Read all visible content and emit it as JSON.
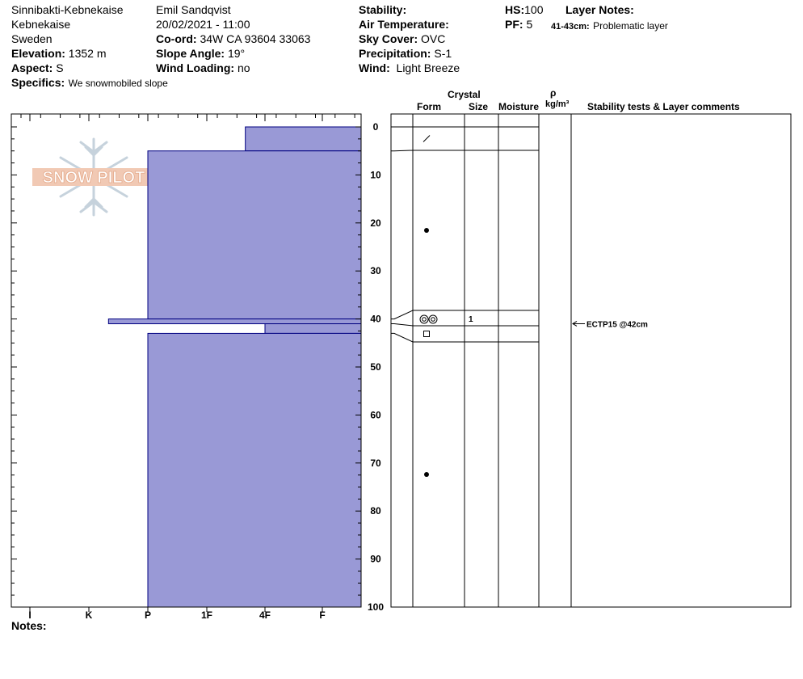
{
  "header": {
    "col1": {
      "location": "Sinnibakti-Kebnekaise",
      "region": "Kebnekaise",
      "country": "Sweden",
      "elevation_label": "Elevation:",
      "elevation_value": "1352 m",
      "aspect_label": "Aspect:",
      "aspect_value": "S",
      "specifics_label": "Specifics:",
      "specifics_value": "We snowmobiled slope"
    },
    "col2": {
      "observer": "Emil Sandqvist",
      "datetime": "20/02/2021 - 11:00",
      "coord_label": "Co-ord:",
      "coord_value": "34W CA 93604 33063",
      "slope_label": "Slope Angle:",
      "slope_value": "19°",
      "wind_loading_label": "Wind Loading:",
      "wind_loading_value": "no"
    },
    "col3": {
      "stability_label": "Stability:",
      "air_temp_label": "Air Temperature:",
      "sky_label": "Sky Cover:",
      "sky_value": "OVC",
      "precip_label": "Precipitation:",
      "precip_value": "S-1",
      "wind_label": "Wind:",
      "wind_value": "Light Breeze"
    },
    "col4": {
      "hs_label": "HS:",
      "hs_value": "100",
      "pf_label": "PF:",
      "pf_value": "5",
      "layer_notes_label": "Layer Notes:",
      "layer_note_range": "41-43cm:",
      "layer_note_text": "Problematic layer"
    }
  },
  "logo": {
    "text": "SNOW PILOT"
  },
  "table_headers": {
    "crystal": "Crystal",
    "form": "Form",
    "size": "Size",
    "moisture": "Moisture",
    "rho": "ρ",
    "density_unit": "kg/m³",
    "comments": "Stability tests & Layer comments"
  },
  "notes_label": "Notes:",
  "colors": {
    "layer_fill": "#9999d6",
    "layer_stroke": "#000080",
    "axis": "#000000"
  },
  "chart_data": {
    "type": "bar",
    "orientation": "horizontal",
    "depth_axis": {
      "min": 0,
      "max": 100,
      "ticks": [
        0,
        10,
        20,
        30,
        40,
        50,
        60,
        70,
        80,
        90,
        100
      ],
      "minor_step": 2.5
    },
    "hardness_axis": {
      "ticks": [
        "I",
        "K",
        "P",
        "1F",
        "4F",
        "F"
      ]
    },
    "layers": [
      {
        "top": 0,
        "bottom": 5,
        "hardness": "4F-"
      },
      {
        "top": 5,
        "bottom": 40,
        "hardness": "P"
      },
      {
        "top": 40,
        "bottom": 41,
        "hardness": "K+"
      },
      {
        "top": 41,
        "bottom": 43,
        "hardness": "4F"
      },
      {
        "top": 43,
        "bottom": 100,
        "hardness": "P"
      }
    ],
    "grain_forms": [
      {
        "depth": 2.5,
        "symbol": "decomposing-icon"
      },
      {
        "depth": 21.5,
        "symbol": "melt-forms-icon"
      },
      {
        "depth": 40,
        "symbol": "surface-hoar-icon",
        "size": "1"
      },
      {
        "depth": 43,
        "symbol": "faceted-icon"
      },
      {
        "depth": 72,
        "symbol": "melt-forms-icon"
      }
    ],
    "stability_tests": [
      {
        "depth": 42,
        "label": "ECTP15 @42cm"
      }
    ]
  }
}
